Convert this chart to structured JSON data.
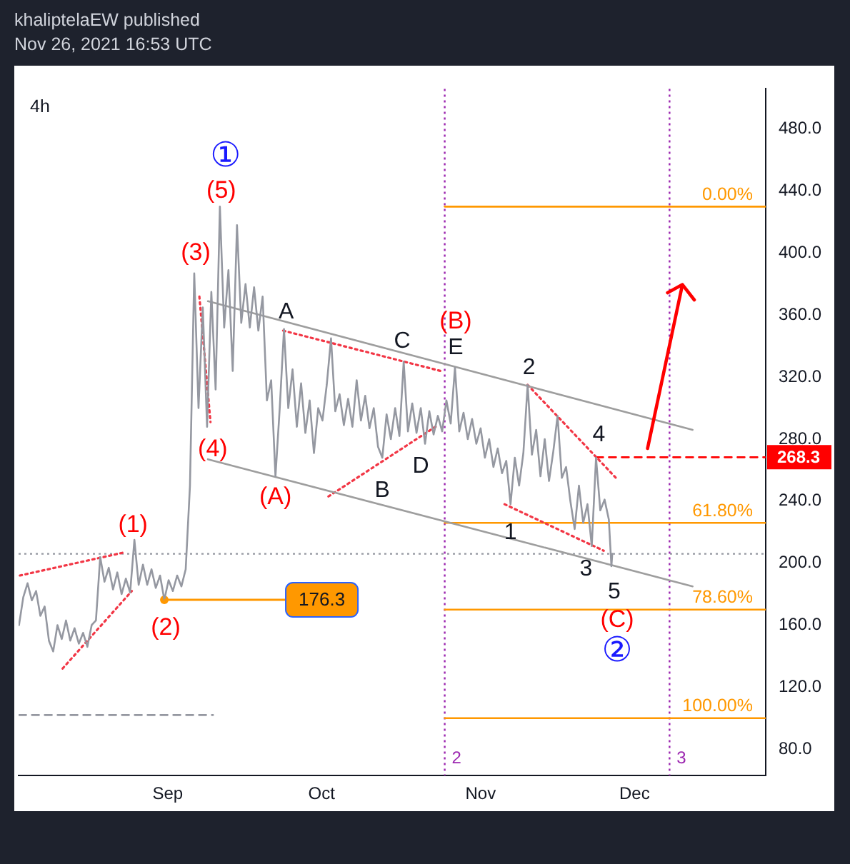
{
  "chart_data": {
    "type": "line",
    "title": "4h",
    "annotations": [
      "khaliptelaEW published",
      "Nov 26, 2021 16:53 UTC",
      {
        "text": "①",
        "x": "2021-09-11T04:00",
        "y": 430
      },
      {
        "text": "(5)",
        "x": "2021-09-11T04:00",
        "y": 430
      },
      {
        "text": "(3)",
        "x": "2021-09-06T04:00",
        "y": 387
      },
      {
        "text": "(4)",
        "x": "2021-09-08T16:00",
        "y": 288
      },
      {
        "text": "(1)",
        "x": "2021-08-25T12:00",
        "y": 215
      },
      {
        "text": "(2)",
        "x": "2021-08-31T08:00",
        "y": 176.3
      },
      {
        "text": "(A)",
        "x": "2021-09-22T00:00",
        "y": 256
      },
      {
        "text": "A",
        "x": "2021-09-23T16:00",
        "y": 351
      },
      {
        "text": "B",
        "x": "2021-10-12T20:00",
        "y": 268
      },
      {
        "text": "C",
        "x": "2021-10-17T00:00",
        "y": 330
      },
      {
        "text": "D",
        "x": "2021-10-21T04:00",
        "y": 277
      },
      {
        "text": "(B)",
        "x": "2021-10-27T00:00",
        "y": 326
      },
      {
        "text": "E",
        "x": "2021-10-27T00:00",
        "y": 326
      },
      {
        "text": "1",
        "x": "2021-11-06T20:00",
        "y": 238
      },
      {
        "text": "2",
        "x": "2021-11-10T04:00",
        "y": 315
      },
      {
        "text": "3",
        "x": "2021-11-22T16:00",
        "y": 211
      },
      {
        "text": "4",
        "x": "2021-11-23T12:00",
        "y": 268
      },
      {
        "text": "5",
        "x": "2021-11-26T12:00",
        "y": 198
      },
      {
        "text": "(C)",
        "x": "2021-11-26T12:00",
        "y": 198
      },
      {
        "text": "②",
        "x": "2021-11-26T12:00",
        "y": 198
      }
    ],
    "x": [
      "2021-08-03T00:00",
      "2021-08-03T20:00",
      "2021-08-04T16:00",
      "2021-08-05T12:00",
      "2021-08-06T08:00",
      "2021-08-07T04:00",
      "2021-08-08T00:00",
      "2021-08-08T20:00",
      "2021-08-09T16:00",
      "2021-08-10T12:00",
      "2021-08-11T08:00",
      "2021-08-12T04:00",
      "2021-08-13T00:00",
      "2021-08-13T20:00",
      "2021-08-14T16:00",
      "2021-08-15T12:00",
      "2021-08-16T08:00",
      "2021-08-17T04:00",
      "2021-08-18T00:00",
      "2021-08-18T20:00",
      "2021-08-19T16:00",
      "2021-08-20T12:00",
      "2021-08-21T08:00",
      "2021-08-22T04:00",
      "2021-08-23T00:00",
      "2021-08-23T20:00",
      "2021-08-24T16:00",
      "2021-08-25T12:00",
      "2021-08-26T08:00",
      "2021-08-27T04:00",
      "2021-08-28T00:00",
      "2021-08-28T20:00",
      "2021-08-29T16:00",
      "2021-08-30T12:00",
      "2021-08-31T08:00",
      "2021-09-01T04:00",
      "2021-09-02T00:00",
      "2021-09-02T20:00",
      "2021-09-03T16:00",
      "2021-09-04T12:00",
      "2021-09-05T08:00",
      "2021-09-06T04:00",
      "2021-09-07T00:00",
      "2021-09-07T20:00",
      "2021-09-08T16:00",
      "2021-09-09T12:00",
      "2021-09-10T08:00",
      "2021-09-11T04:00",
      "2021-09-12T00:00",
      "2021-09-12T20:00",
      "2021-09-13T16:00",
      "2021-09-14T12:00",
      "2021-09-15T08:00",
      "2021-09-16T04:00",
      "2021-09-17T00:00",
      "2021-09-17T20:00",
      "2021-09-18T16:00",
      "2021-09-19T12:00",
      "2021-09-20T08:00",
      "2021-09-21T04:00",
      "2021-09-22T00:00",
      "2021-09-22T20:00",
      "2021-09-23T16:00",
      "2021-09-24T12:00",
      "2021-09-25T08:00",
      "2021-09-26T04:00",
      "2021-09-27T00:00",
      "2021-09-27T20:00",
      "2021-09-28T16:00",
      "2021-09-29T12:00",
      "2021-09-30T08:00",
      "2021-10-01T04:00",
      "2021-10-02T00:00",
      "2021-10-02T20:00",
      "2021-10-03T16:00",
      "2021-10-04T12:00",
      "2021-10-05T08:00",
      "2021-10-06T04:00",
      "2021-10-07T00:00",
      "2021-10-07T20:00",
      "2021-10-08T16:00",
      "2021-10-09T12:00",
      "2021-10-10T08:00",
      "2021-10-11T04:00",
      "2021-10-12T00:00",
      "2021-10-12T20:00",
      "2021-10-13T16:00",
      "2021-10-14T12:00",
      "2021-10-15T08:00",
      "2021-10-16T04:00",
      "2021-10-17T00:00",
      "2021-10-17T20:00",
      "2021-10-18T16:00",
      "2021-10-19T12:00",
      "2021-10-20T08:00",
      "2021-10-21T04:00",
      "2021-10-22T00:00",
      "2021-10-22T20:00",
      "2021-10-23T16:00",
      "2021-10-24T12:00",
      "2021-10-25T08:00",
      "2021-10-26T04:00",
      "2021-10-27T00:00",
      "2021-10-27T20:00",
      "2021-10-28T16:00",
      "2021-10-29T12:00",
      "2021-10-30T08:00",
      "2021-10-31T04:00",
      "2021-11-01T00:00",
      "2021-11-01T20:00",
      "2021-11-02T16:00",
      "2021-11-03T12:00",
      "2021-11-04T08:00",
      "2021-11-05T04:00",
      "2021-11-06T00:00",
      "2021-11-06T20:00",
      "2021-11-07T16:00",
      "2021-11-08T12:00",
      "2021-11-09T08:00",
      "2021-11-10T04:00",
      "2021-11-11T00:00",
      "2021-11-11T20:00",
      "2021-11-12T16:00",
      "2021-11-13T12:00",
      "2021-11-14T08:00",
      "2021-11-15T04:00",
      "2021-11-16T00:00",
      "2021-11-16T20:00",
      "2021-11-17T16:00",
      "2021-11-18T12:00",
      "2021-11-19T08:00",
      "2021-11-20T04:00",
      "2021-11-21T00:00",
      "2021-11-21T20:00",
      "2021-11-22T16:00",
      "2021-11-23T12:00",
      "2021-11-24T08:00",
      "2021-11-25T04:00",
      "2021-11-26T00:00",
      "2021-11-26T12:00",
      "2021-11-26T16:00"
    ],
    "series": [
      {
        "color": "#9598a1",
        "marker": "none",
        "values": [
          160,
          178,
          187,
          176,
          182,
          166,
          172,
          150,
          143,
          160,
          151,
          163,
          150,
          158,
          148,
          155,
          146,
          160,
          163,
          204,
          188,
          197,
          183,
          194,
          180,
          190,
          181,
          215,
          186,
          199,
          186,
          196,
          184,
          192,
          176.3,
          189,
          182,
          192,
          185,
          196,
          250,
          387,
          300,
          365,
          288,
          375,
          312,
          430,
          352,
          389,
          324,
          418,
          355,
          380,
          352,
          378,
          350,
          372,
          305,
          318,
          256,
          300,
          351,
          300,
          325,
          288,
          316,
          284,
          305,
          271,
          300,
          292,
          315,
          345,
          298,
          309,
          289,
          306,
          288,
          318,
          292,
          308,
          287,
          300,
          275,
          268,
          296,
          280,
          300,
          282,
          330,
          285,
          303,
          284,
          300,
          277,
          298,
          283,
          295,
          285,
          305,
          290,
          326,
          285,
          297,
          280,
          293,
          277,
          287,
          268,
          280,
          262,
          274,
          258,
          266,
          238,
          268,
          250,
          271,
          315,
          270,
          286,
          256,
          280,
          253,
          272,
          295,
          255,
          262,
          240,
          222,
          250,
          226,
          238,
          211,
          268,
          234,
          241,
          228,
          198,
          206
        ]
      },
      {
        "type": "scatter",
        "color": "#ff9800",
        "marker": "circle",
        "x": [
          "2021-08-31T08:00"
        ],
        "values": [
          176.3
        ],
        "value_labels": [
          "176.3"
        ]
      },
      {
        "color": "#9e9e9e",
        "marker": "none",
        "x": [
          "2021-09-08T20:00",
          "2021-12-12T08:00"
        ],
        "values": [
          369,
          286
        ]
      },
      {
        "color": "#9e9e9e",
        "marker": "none",
        "x": [
          "2021-09-08T20:00",
          "2021-12-12T08:00"
        ],
        "values": [
          267,
          185
        ]
      },
      {
        "color": "#f23645",
        "marker": "none",
        "line_style": "dotted",
        "x": [
          "2021-08-03T04:00",
          "2021-08-23T16:00"
        ],
        "values": [
          192,
          207
        ]
      },
      {
        "color": "#f23645",
        "marker": "none",
        "line_style": "dotted",
        "x": [
          "2021-08-11T12:00",
          "2021-08-25T00:00"
        ],
        "values": [
          132,
          182
        ]
      },
      {
        "color": "#f23645",
        "marker": "none",
        "line_style": "dotted",
        "x": [
          "2021-09-07T04:00",
          "2021-09-09T08:00"
        ],
        "values": [
          372,
          291
        ]
      },
      {
        "color": "#f23645",
        "marker": "none",
        "line_style": "dotted",
        "x": [
          "2021-09-23T12:00",
          "2021-10-24T04:00"
        ],
        "values": [
          350,
          324
        ]
      },
      {
        "color": "#f23645",
        "marker": "none",
        "line_style": "dotted",
        "x": [
          "2021-10-02T08:00",
          "2021-10-23T16:00"
        ],
        "values": [
          243,
          289
        ]
      },
      {
        "color": "#f23645",
        "marker": "none",
        "line_style": "dotted",
        "x": [
          "2021-11-05T16:00",
          "2021-11-25T00:00"
        ],
        "values": [
          238,
          208
        ]
      },
      {
        "color": "#f23645",
        "marker": "none",
        "line_style": "dotted",
        "x": [
          "2021-11-10T04:00",
          "2021-11-27T16:00"
        ],
        "values": [
          315,
          254
        ]
      },
      {
        "color": "#9598a1",
        "marker": "none",
        "line_style": "dashed",
        "x": [
          "2021-08-03T00:00",
          "2021-09-09T20:00"
        ],
        "values": [
          102,
          102
        ]
      },
      {
        "color": "#ff0000",
        "marker": "none",
        "line_style": "dashed",
        "x": [
          "2021-11-23T12:00",
          "2021-12-26T14:00"
        ],
        "values": [
          268.3,
          268.3
        ],
        "value_labels": [
          null,
          "268.3"
        ]
      },
      {
        "name": "0.00%",
        "color": "#ff9800",
        "marker": "none",
        "x": [
          "2021-10-25T00:00",
          "2021-12-26T14:00"
        ],
        "values": [
          430,
          430
        ]
      },
      {
        "name": "61.80%",
        "color": "#ff9800",
        "marker": "none",
        "x": [
          "2021-10-25T00:00",
          "2021-12-26T14:00"
        ],
        "values": [
          226,
          226
        ]
      },
      {
        "name": "78.60%",
        "color": "#ff9800",
        "marker": "none",
        "x": [
          "2021-10-25T00:00",
          "2021-12-26T14:00"
        ],
        "values": [
          170,
          170
        ]
      },
      {
        "name": "100.00%",
        "color": "#ff9800",
        "marker": "none",
        "x": [
          "2021-10-25T00:00",
          "2021-12-26T14:00"
        ],
        "values": [
          100,
          100
        ]
      }
    ],
    "ref_lines": [
      {
        "axis": "y",
        "value": 206,
        "color": "#9598a1",
        "line_style": "dotted"
      },
      {
        "axis": "x",
        "value": "2021-10-25T00:00",
        "label": "2",
        "color": "#9c27b0",
        "line_style": "dotted"
      },
      {
        "axis": "x",
        "value": "2021-12-07T20:00",
        "label": "3",
        "color": "#9c27b0",
        "line_style": "dotted"
      }
    ],
    "xlim": [
      "2021-08-02T22:00",
      "2021-12-26T14:00"
    ],
    "xticks": [
      {
        "value": "2021-09-01",
        "label": "Sep"
      },
      {
        "value": "2021-10-01",
        "label": "Oct"
      },
      {
        "value": "2021-11-01",
        "label": "Nov"
      },
      {
        "value": "2021-12-01",
        "label": "Dec"
      }
    ],
    "ylim": [
      63,
      506
    ],
    "yticks": [
      {
        "value": 80,
        "label": "80.0"
      },
      {
        "value": 120,
        "label": "120.0"
      },
      {
        "value": 160,
        "label": "160.0"
      },
      {
        "value": 200,
        "label": "200.0"
      },
      {
        "value": 240,
        "label": "240.0"
      },
      {
        "value": 280,
        "label": "280.0"
      },
      {
        "value": 320,
        "label": "320.0"
      },
      {
        "value": 360,
        "label": "360.0"
      },
      {
        "value": 400,
        "label": "400.0"
      },
      {
        "value": 440,
        "label": "440.0"
      },
      {
        "value": 480,
        "label": "480.0"
      }
    ]
  }
}
